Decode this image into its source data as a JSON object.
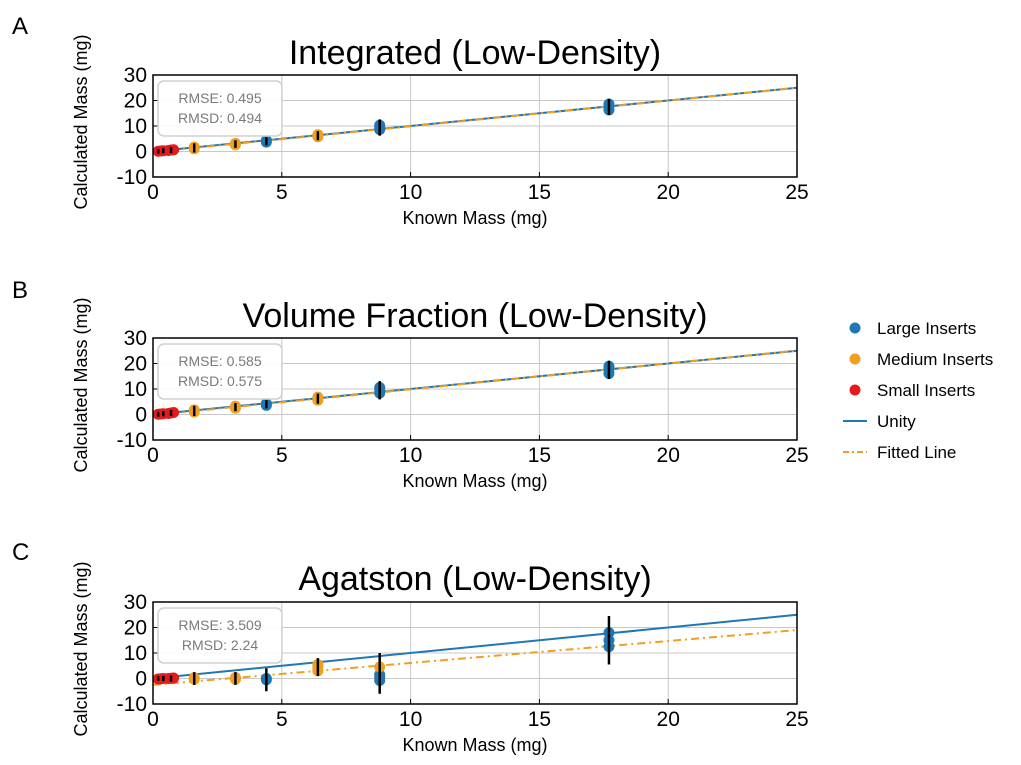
{
  "chart_data": [
    {
      "panel": "A",
      "type": "scatter",
      "title": "Integrated (Low-Density)",
      "xlabel": "Known Mass (mg)",
      "ylabel": "Calculated Mass (mg)",
      "xlim": [
        0,
        25
      ],
      "ylim": [
        -10,
        30
      ],
      "xticks": [
        0,
        5,
        10,
        15,
        20,
        25
      ],
      "yticks": [
        -10,
        0,
        10,
        20,
        30
      ],
      "grid": true,
      "stats": [
        "RMSE: 0.495",
        "RMSD: 0.494"
      ],
      "series": [
        {
          "name": "Large Inserts",
          "color": "#1f77b4",
          "points": [
            [
              4.4,
              3.7
            ],
            [
              4.4,
              4.4
            ],
            [
              8.8,
              8.6
            ],
            [
              8.8,
              9.6
            ],
            [
              8.8,
              10.3
            ],
            [
              17.7,
              16.3
            ],
            [
              17.7,
              17.7
            ],
            [
              17.7,
              18.6
            ]
          ]
        },
        {
          "name": "Medium Inserts",
          "color": "#f0a020",
          "points": [
            [
              1.6,
              1.1
            ],
            [
              1.6,
              1.7
            ],
            [
              3.2,
              2.6
            ],
            [
              3.2,
              3.2
            ],
            [
              6.4,
              5.8
            ],
            [
              6.4,
              6.6
            ]
          ]
        },
        {
          "name": "Small Inserts",
          "color": "#e41a1c",
          "points": [
            [
              0.2,
              0.1
            ],
            [
              0.3,
              0.2
            ],
            [
              0.4,
              0.3
            ],
            [
              0.6,
              0.4
            ],
            [
              0.7,
              0.6
            ],
            [
              0.8,
              0.7
            ]
          ]
        }
      ],
      "errorbars": [
        [
          0.2,
          0.1,
          1
        ],
        [
          0.4,
          0.3,
          1
        ],
        [
          0.7,
          0.6,
          1.2
        ],
        [
          1.6,
          1.4,
          1.8
        ],
        [
          3.2,
          2.9,
          1.5
        ],
        [
          4.4,
          4.0,
          1.6
        ],
        [
          6.4,
          6.2,
          1.8
        ],
        [
          8.8,
          9.4,
          3.2
        ],
        [
          17.7,
          17.5,
          3.2
        ]
      ],
      "unity": [
        [
          0,
          0
        ],
        [
          25,
          25
        ]
      ],
      "fitted_line": [
        [
          0,
          -0.2
        ],
        [
          25,
          25.0
        ]
      ]
    },
    {
      "panel": "B",
      "type": "scatter",
      "title": "Volume Fraction (Low-Density)",
      "xlabel": "Known Mass (mg)",
      "ylabel": "Calculated Mass (mg)",
      "xlim": [
        0,
        25
      ],
      "ylim": [
        -10,
        30
      ],
      "xticks": [
        0,
        5,
        10,
        15,
        20,
        25
      ],
      "yticks": [
        -10,
        0,
        10,
        20,
        30
      ],
      "grid": true,
      "stats": [
        "RMSE: 0.585",
        "RMSD: 0.575"
      ],
      "series": [
        {
          "name": "Large Inserts",
          "color": "#1f77b4",
          "points": [
            [
              4.4,
              3.6
            ],
            [
              4.4,
              4.3
            ],
            [
              8.8,
              8.4
            ],
            [
              8.8,
              9.8
            ],
            [
              8.8,
              10.6
            ],
            [
              17.7,
              16.1
            ],
            [
              17.7,
              17.8
            ],
            [
              17.7,
              18.9
            ]
          ]
        },
        {
          "name": "Medium Inserts",
          "color": "#f0a020",
          "points": [
            [
              1.6,
              1.0
            ],
            [
              1.6,
              1.8
            ],
            [
              3.2,
              2.5
            ],
            [
              3.2,
              3.3
            ],
            [
              6.4,
              5.6
            ],
            [
              6.4,
              6.8
            ]
          ]
        },
        {
          "name": "Small Inserts",
          "color": "#e41a1c",
          "points": [
            [
              0.2,
              0.1
            ],
            [
              0.3,
              0.2
            ],
            [
              0.4,
              0.3
            ],
            [
              0.6,
              0.4
            ],
            [
              0.7,
              0.6
            ],
            [
              0.8,
              0.8
            ]
          ]
        }
      ],
      "errorbars": [
        [
          0.2,
          0.1,
          1
        ],
        [
          0.4,
          0.3,
          1
        ],
        [
          0.7,
          0.6,
          1.2
        ],
        [
          1.6,
          1.4,
          2
        ],
        [
          3.2,
          2.9,
          1.6
        ],
        [
          4.4,
          4.0,
          1.6
        ],
        [
          6.4,
          6.2,
          2
        ],
        [
          8.8,
          9.5,
          3.6
        ],
        [
          17.7,
          17.5,
          3.6
        ]
      ],
      "unity": [
        [
          0,
          0
        ],
        [
          25,
          25
        ]
      ],
      "fitted_line": [
        [
          0,
          -0.3
        ],
        [
          25,
          25.1
        ]
      ]
    },
    {
      "panel": "C",
      "type": "scatter",
      "title": "Agatston (Low-Density)",
      "xlabel": "Known Mass (mg)",
      "ylabel": "Calculated Mass (mg)",
      "xlim": [
        0,
        25
      ],
      "ylim": [
        -10,
        30
      ],
      "xticks": [
        0,
        5,
        10,
        15,
        20,
        25
      ],
      "yticks": [
        -10,
        0,
        10,
        20,
        30
      ],
      "grid": true,
      "stats": [
        "RMSE: 3.509",
        "RMSD: 2.24"
      ],
      "series": [
        {
          "name": "Large Inserts",
          "color": "#1f77b4",
          "points": [
            [
              4.4,
              -0.5
            ],
            [
              4.4,
              0
            ],
            [
              8.8,
              -0.8
            ],
            [
              8.8,
              0.5
            ],
            [
              8.8,
              1.5
            ],
            [
              17.7,
              12.5
            ],
            [
              17.7,
              15
            ],
            [
              17.7,
              18
            ]
          ]
        },
        {
          "name": "Medium Inserts",
          "color": "#f0a020",
          "points": [
            [
              1.6,
              -0.3
            ],
            [
              1.6,
              0.3
            ],
            [
              3.2,
              -0.3
            ],
            [
              3.2,
              0.4
            ],
            [
              6.4,
              3
            ],
            [
              6.4,
              4.5
            ],
            [
              6.4,
              5.5
            ],
            [
              8.8,
              4.5
            ]
          ]
        },
        {
          "name": "Small Inserts",
          "color": "#e41a1c",
          "points": [
            [
              0.2,
              -0.2
            ],
            [
              0.3,
              -0.1
            ],
            [
              0.4,
              0
            ],
            [
              0.6,
              0
            ],
            [
              0.7,
              0.1
            ],
            [
              0.8,
              0.2
            ]
          ]
        }
      ],
      "errorbars": [
        [
          0.2,
          0,
          1
        ],
        [
          0.4,
          0,
          1
        ],
        [
          0.7,
          0,
          1.2
        ],
        [
          1.6,
          0,
          2.5
        ],
        [
          3.2,
          0,
          2.5
        ],
        [
          4.4,
          -0.5,
          4.5
        ],
        [
          6.4,
          4.5,
          3.5
        ],
        [
          8.8,
          2,
          8
        ],
        [
          17.7,
          15,
          9.5
        ]
      ],
      "unity": [
        [
          0,
          0
        ],
        [
          25,
          25
        ]
      ],
      "fitted_line": [
        [
          0,
          -2.5
        ],
        [
          25,
          19
        ]
      ]
    }
  ],
  "legend": {
    "placement": "right",
    "items": [
      {
        "label": "Large Inserts",
        "kind": "marker",
        "color": "#1f77b4"
      },
      {
        "label": "Medium Inserts",
        "kind": "marker",
        "color": "#f0a020"
      },
      {
        "label": "Small Inserts",
        "kind": "marker",
        "color": "#e41a1c"
      },
      {
        "label": "Unity",
        "kind": "line",
        "color": "#1f77b4"
      },
      {
        "label": "Fitted Line",
        "kind": "dashdot",
        "color": "#f0a020"
      }
    ]
  }
}
